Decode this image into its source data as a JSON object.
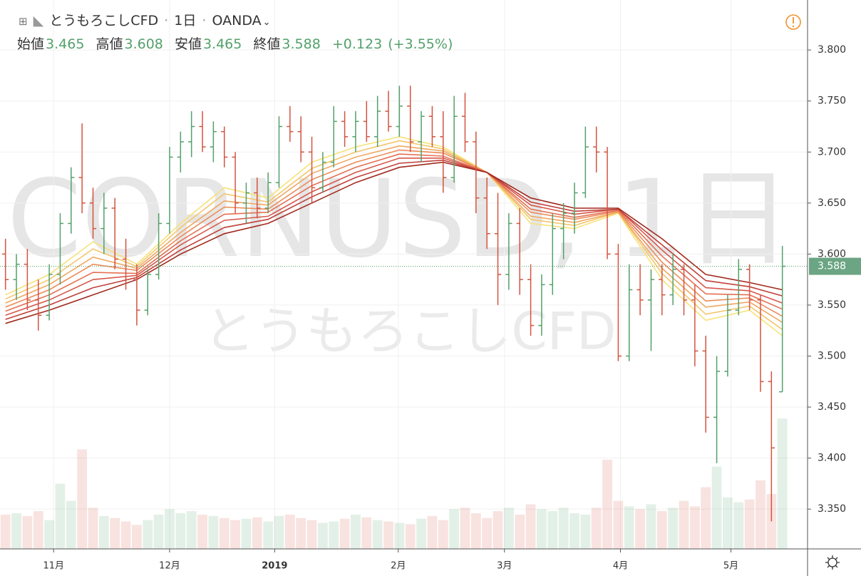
{
  "chart_data": {
    "type": "ohlc",
    "symbol": "とうもろこしCFD",
    "interval": "1日",
    "exchange": "OANDA",
    "separator": "·",
    "watermark": "CORNUSD, 1日",
    "watermark_sub": "とうもろこしCFD",
    "legend": {
      "labels": [
        "始値",
        "高値",
        "安値",
        "終値"
      ],
      "values": [
        3.465,
        3.608,
        3.465,
        3.588
      ],
      "change": "+0.123",
      "change_pct": "(+3.55%)"
    },
    "up_color": "#53a06a",
    "down_color": "#d4533f",
    "open": [
      3.6,
      3.575,
      3.59,
      3.555,
      3.54,
      3.58,
      3.63,
      3.675,
      3.65,
      3.625,
      3.645,
      3.595,
      3.575,
      3.545,
      3.58,
      3.63,
      3.695,
      3.71,
      3.725,
      3.705,
      3.72,
      3.695,
      3.65,
      3.66,
      3.645,
      3.67,
      3.725,
      3.72,
      3.7,
      3.665,
      3.69,
      3.73,
      3.715,
      3.73,
      3.715,
      3.74,
      3.725,
      3.745,
      3.71,
      3.735,
      3.715,
      3.675,
      3.735,
      3.71,
      3.655,
      3.62,
      3.58,
      3.63,
      3.575,
      3.53,
      3.57,
      3.625,
      3.64,
      3.66,
      3.705,
      3.7,
      3.6,
      3.5,
      3.565,
      3.555,
      3.575,
      3.56,
      3.585,
      3.555,
      3.505,
      3.44,
      3.485,
      3.545,
      3.585,
      3.555,
      3.475,
      3.465
    ],
    "high": [
      3.615,
      3.6,
      3.605,
      3.575,
      3.59,
      3.64,
      3.685,
      3.728,
      3.665,
      3.66,
      3.655,
      3.615,
      3.59,
      3.585,
      3.64,
      3.705,
      3.72,
      3.74,
      3.74,
      3.73,
      3.725,
      3.7,
      3.67,
      3.675,
      3.68,
      3.735,
      3.745,
      3.735,
      3.715,
      3.7,
      3.745,
      3.74,
      3.74,
      3.75,
      3.755,
      3.76,
      3.765,
      3.765,
      3.74,
      3.745,
      3.74,
      3.755,
      3.758,
      3.72,
      3.675,
      3.66,
      3.64,
      3.645,
      3.59,
      3.58,
      3.64,
      3.65,
      3.67,
      3.725,
      3.725,
      3.705,
      3.61,
      3.59,
      3.59,
      3.585,
      3.59,
      3.6,
      3.59,
      3.57,
      3.52,
      3.5,
      3.56,
      3.595,
      3.59,
      3.56,
      3.485,
      3.608
    ],
    "low": [
      3.565,
      3.555,
      3.545,
      3.525,
      3.535,
      3.57,
      3.62,
      3.64,
      3.615,
      3.6,
      3.585,
      3.565,
      3.53,
      3.54,
      3.575,
      3.62,
      3.68,
      3.695,
      3.7,
      3.69,
      3.685,
      3.64,
      3.63,
      3.635,
      3.64,
      3.665,
      3.71,
      3.69,
      3.65,
      3.66,
      3.685,
      3.705,
      3.7,
      3.71,
      3.705,
      3.72,
      3.715,
      3.7,
      3.69,
      3.705,
      3.66,
      3.67,
      3.7,
      3.64,
      3.605,
      3.55,
      3.565,
      3.56,
      3.52,
      3.52,
      3.56,
      3.595,
      3.62,
      3.655,
      3.68,
      3.595,
      3.495,
      3.495,
      3.54,
      3.505,
      3.54,
      3.55,
      3.54,
      3.49,
      3.425,
      3.395,
      3.48,
      3.54,
      3.545,
      3.465,
      3.338,
      3.465
    ],
    "close": [
      3.575,
      3.59,
      3.555,
      3.54,
      3.58,
      3.63,
      3.675,
      3.65,
      3.625,
      3.645,
      3.595,
      3.575,
      3.545,
      3.58,
      3.63,
      3.695,
      3.71,
      3.725,
      3.705,
      3.72,
      3.695,
      3.65,
      3.66,
      3.645,
      3.67,
      3.725,
      3.72,
      3.7,
      3.665,
      3.69,
      3.73,
      3.715,
      3.73,
      3.715,
      3.74,
      3.725,
      3.745,
      3.71,
      3.735,
      3.715,
      3.675,
      3.735,
      3.71,
      3.655,
      3.62,
      3.58,
      3.63,
      3.575,
      3.53,
      3.57,
      3.625,
      3.64,
      3.66,
      3.705,
      3.7,
      3.6,
      3.5,
      3.565,
      3.555,
      3.575,
      3.56,
      3.585,
      3.555,
      3.505,
      3.44,
      3.485,
      3.545,
      3.585,
      3.555,
      3.475,
      3.41,
      3.588
    ],
    "volume": [
      50,
      52,
      48,
      55,
      42,
      95,
      70,
      145,
      60,
      48,
      45,
      40,
      35,
      42,
      50,
      58,
      52,
      55,
      50,
      48,
      45,
      42,
      44,
      46,
      40,
      48,
      50,
      45,
      42,
      38,
      40,
      44,
      50,
      46,
      42,
      40,
      38,
      36,
      44,
      48,
      42,
      58,
      60,
      52,
      45,
      55,
      60,
      50,
      65,
      58,
      55,
      60,
      52,
      50,
      60,
      130,
      70,
      62,
      58,
      65,
      55,
      60,
      70,
      62,
      90,
      120,
      75,
      68,
      72,
      100,
      80,
      190
    ],
    "vlim": [
      0,
      800
    ],
    "ribbon": {
      "x": [
        0,
        4,
        8,
        12,
        16,
        20,
        24,
        28,
        32,
        36,
        40,
        44,
        48,
        52,
        56,
        60,
        64,
        68,
        71
      ],
      "series": [
        {
          "color": "#f6e27a",
          "values": [
            3.56,
            3.58,
            3.612,
            3.59,
            3.63,
            3.665,
            3.655,
            3.69,
            3.705,
            3.715,
            3.705,
            3.68,
            3.63,
            3.625,
            3.64,
            3.575,
            3.535,
            3.545,
            3.52
          ]
        },
        {
          "color": "#f4c66a",
          "values": [
            3.556,
            3.575,
            3.605,
            3.588,
            3.626,
            3.659,
            3.651,
            3.684,
            3.7,
            3.711,
            3.703,
            3.68,
            3.634,
            3.628,
            3.641,
            3.581,
            3.541,
            3.549,
            3.526
          ]
        },
        {
          "color": "#f0a860",
          "values": [
            3.552,
            3.57,
            3.597,
            3.586,
            3.621,
            3.652,
            3.648,
            3.679,
            3.695,
            3.706,
            3.701,
            3.68,
            3.637,
            3.631,
            3.641,
            3.586,
            3.548,
            3.553,
            3.533
          ]
        },
        {
          "color": "#ec8c5a",
          "values": [
            3.548,
            3.565,
            3.59,
            3.584,
            3.617,
            3.646,
            3.644,
            3.673,
            3.69,
            3.702,
            3.699,
            3.68,
            3.641,
            3.634,
            3.642,
            3.592,
            3.554,
            3.557,
            3.539
          ]
        },
        {
          "color": "#e47052",
          "values": [
            3.544,
            3.56,
            3.582,
            3.581,
            3.613,
            3.639,
            3.641,
            3.667,
            3.685,
            3.698,
            3.696,
            3.68,
            3.644,
            3.636,
            3.643,
            3.598,
            3.561,
            3.56,
            3.546
          ]
        },
        {
          "color": "#d6574a",
          "values": [
            3.54,
            3.555,
            3.575,
            3.579,
            3.609,
            3.633,
            3.637,
            3.661,
            3.68,
            3.694,
            3.694,
            3.68,
            3.648,
            3.639,
            3.644,
            3.604,
            3.567,
            3.564,
            3.552
          ]
        },
        {
          "color": "#c0413a",
          "values": [
            3.536,
            3.55,
            3.567,
            3.577,
            3.604,
            3.626,
            3.634,
            3.656,
            3.675,
            3.689,
            3.692,
            3.68,
            3.651,
            3.642,
            3.644,
            3.609,
            3.574,
            3.568,
            3.559
          ]
        },
        {
          "color": "#a12a1e",
          "values": [
            3.532,
            3.545,
            3.56,
            3.575,
            3.6,
            3.62,
            3.63,
            3.65,
            3.67,
            3.685,
            3.69,
            3.68,
            3.655,
            3.645,
            3.645,
            3.615,
            3.58,
            3.572,
            3.565
          ]
        }
      ]
    },
    "xlim": [
      -0.5,
      73.3
    ],
    "xticks": [
      {
        "value": 4.4,
        "label": "11月"
      },
      {
        "value": 15.0,
        "label": "12月"
      },
      {
        "value": 24.6,
        "label": "2019"
      },
      {
        "value": 35.9,
        "label": "2月"
      },
      {
        "value": 45.6,
        "label": "3月"
      },
      {
        "value": 56.2,
        "label": "4月"
      },
      {
        "value": 66.3,
        "label": "5月"
      }
    ],
    "ylim": [
      3.311,
      3.849
    ],
    "yticks": [
      {
        "value": 3.35,
        "label": "3.350"
      },
      {
        "value": 3.4,
        "label": "3.400"
      },
      {
        "value": 3.45,
        "label": "3.450"
      },
      {
        "value": 3.5,
        "label": "3.500"
      },
      {
        "value": 3.55,
        "label": "3.550"
      },
      {
        "value": 3.6,
        "label": "3.600"
      },
      {
        "value": 3.65,
        "label": "3.650"
      },
      {
        "value": 3.7,
        "label": "3.700"
      },
      {
        "value": 3.75,
        "label": "3.750"
      },
      {
        "value": 3.8,
        "label": "3.800"
      }
    ],
    "grid": true
  }
}
